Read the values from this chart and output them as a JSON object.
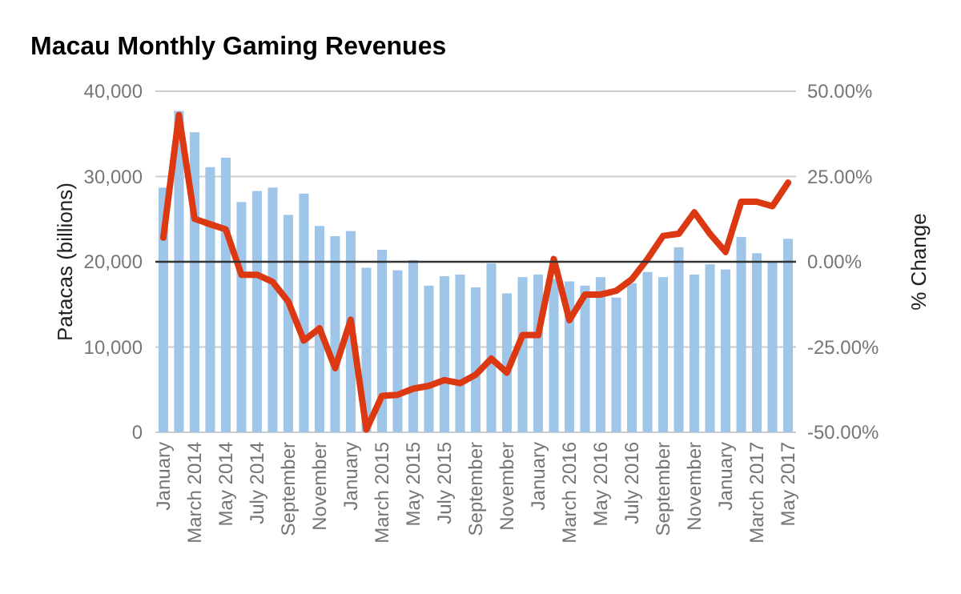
{
  "chart_data": {
    "type": "bar",
    "title": "Macau Monthly Gaming Revenues",
    "ylabel": "Patacas (billions)",
    "y2label": "% Change",
    "categories": [
      "January",
      null,
      "March 2014",
      null,
      "May 2014",
      null,
      "July 2014",
      null,
      "September",
      null,
      "November",
      null,
      "January",
      null,
      "March 2015",
      null,
      "May 2015",
      null,
      "July 2015",
      null,
      "September",
      null,
      "November",
      null,
      "January",
      null,
      "March 2016",
      null,
      "May 2016",
      null,
      "July 2016",
      null,
      "September",
      null,
      "November",
      null,
      "January",
      null,
      "March 2017",
      null,
      "May 2017"
    ],
    "series": [
      {
        "color": "#9fc5e8",
        "values": [
          28700,
          37700,
          35200,
          31100,
          32200,
          27000,
          28300,
          28700,
          25500,
          28000,
          24200,
          23000,
          23600,
          19300,
          21400,
          19000,
          20200,
          17200,
          18300,
          18500,
          17000,
          19800,
          16300,
          18200,
          18500,
          18000,
          17700,
          17200,
          18200,
          15800,
          17500,
          18800,
          18200,
          21700,
          18500,
          19700,
          19100,
          22900,
          21000,
          20000,
          22700
        ]
      },
      {
        "type": "line",
        "axis": "y2",
        "color": "#dc3912",
        "values": [
          7.1,
          43,
          12.6,
          11,
          9.5,
          -3.8,
          -3.8,
          -5.9,
          -11.7,
          -23.1,
          -19.5,
          -31.2,
          -17,
          -49.2,
          -39.3,
          -39,
          -37.2,
          -36.4,
          -34.7,
          -35.6,
          -33.1,
          -28.4,
          -32.5,
          -21.5,
          -21.5,
          0.8,
          -17.1,
          -9.6,
          -9.6,
          -8.5,
          -5.1,
          0.8,
          7.6,
          8.2,
          14.5,
          8.2,
          2.9,
          17.6,
          17.6,
          16.3,
          23.2
        ]
      }
    ],
    "ylim": [
      0,
      40000
    ],
    "yticks": [
      {
        "value": 0,
        "label": "0"
      },
      {
        "value": 10000,
        "label": "10,000"
      },
      {
        "value": 20000,
        "label": "20,000"
      },
      {
        "value": 30000,
        "label": "30,000"
      },
      {
        "value": 40000,
        "label": "40,000"
      }
    ],
    "y2lim": [
      -50,
      50
    ],
    "y2ticks": [
      {
        "value": -50,
        "label": "-50.00%"
      },
      {
        "value": -25,
        "label": "-25.00%"
      },
      {
        "value": 0,
        "label": "0.00%"
      },
      {
        "value": 25,
        "label": "25.00%"
      },
      {
        "value": 50,
        "label": "50.00%"
      }
    ],
    "ref_lines": [
      {
        "axis": "y2",
        "value": 0,
        "color": "#333333"
      }
    ],
    "grid": "y"
  }
}
